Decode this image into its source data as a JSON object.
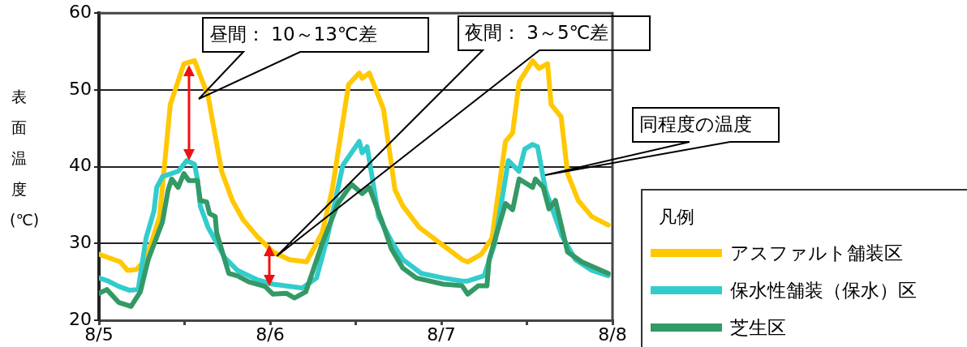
{
  "chart_data": {
    "type": "line",
    "ylabel": "表面温度(℃)",
    "legend_title": "凡例",
    "legend": "bottom right",
    "grid": "y",
    "marker": "none",
    "line_style": "solid",
    "annotations": [
      "昼間： 10～13℃差",
      "夜間： 3～5℃差",
      "同程度の温度"
    ],
    "xlim": [
      "--08-05",
      "--08-08"
    ],
    "xticks": [
      {
        "value": "--08-05",
        "label": "8/5"
      },
      {
        "value": "--08-05T12:00",
        "label": null
      },
      {
        "value": "--08-06",
        "label": "8/6"
      },
      {
        "value": "--08-06T12:00",
        "label": null
      },
      {
        "value": "--08-07",
        "label": "8/7"
      },
      {
        "value": "--08-07T12:00",
        "label": null
      },
      {
        "value": "--08-08",
        "label": "8/8"
      }
    ],
    "ylim": [
      20,
      60
    ],
    "yticks": [
      20,
      30,
      40,
      50,
      60
    ],
    "series": [
      {
        "name": "アスファルト舗装区",
        "color": "#ffc800",
        "x": [
          "--08-05T00:00",
          "--08-05T03:00",
          "--08-05T04:00",
          "--08-05T05:12",
          "--08-05T06:36",
          "--08-05T08:30",
          "--08-05T10:00",
          "--08-05T11:54",
          "--08-05T13:24",
          "--08-05T15:18",
          "--08-05T17:12",
          "--08-05T18:42",
          "--08-05T20:12",
          "--08-05T22:06",
          "--08-06T00:24",
          "--08-06T02:42",
          "--08-06T05:06",
          "--08-06T07:18",
          "--08-06T08:42",
          "--08-06T11:00",
          "--08-06T12:30",
          "--08-06T12:54",
          "--08-06T13:54",
          "--08-06T15:54",
          "--08-06T17:30",
          "--08-06T18:36",
          "--08-06T20:54",
          "--08-06T23:54",
          "--08-07T02:54",
          "--08-07T03:42",
          "--08-07T05:36",
          "--08-07T07:06",
          "--08-07T09:00",
          "--08-07T10:00",
          "--08-07T10:54",
          "--08-07T12:48",
          "--08-07T13:42",
          "--08-07T14:54",
          "--08-07T15:24",
          "--08-07T16:48",
          "--08-07T17:42",
          "--08-07T19:12",
          "--08-07T21:06",
          "--08-07T23:24"
        ],
        "values": [
          28.6,
          27.6,
          26.5,
          26.6,
          27.9,
          33.5,
          48.1,
          53.4,
          53.8,
          49.2,
          39.4,
          35.6,
          33.1,
          31.0,
          28.9,
          27.9,
          27.6,
          31.4,
          37.0,
          50.7,
          52.2,
          51.5,
          52.2,
          47.5,
          37.0,
          34.9,
          32.1,
          30.0,
          27.9,
          27.6,
          28.6,
          30.7,
          43.3,
          44.4,
          51.0,
          53.8,
          52.8,
          53.4,
          48.1,
          46.5,
          39.1,
          35.6,
          33.5,
          32.4
        ]
      },
      {
        "name": "保水性舗装（保水）区",
        "color": "#33cccc",
        "x": [
          "--08-05T00:00",
          "--08-05T01:18",
          "--08-05T02:48",
          "--08-05T04:18",
          "--08-05T05:30",
          "--08-05T06:36",
          "--08-05T07:42",
          "--08-05T08:06",
          "--08-05T08:54",
          "--08-05T11:06",
          "--08-05T12:18",
          "--08-05T13:24",
          "--08-05T13:48",
          "--08-05T14:12",
          "--08-05T15:18",
          "--08-05T17:36",
          "--08-05T19:24",
          "--08-05T22:06",
          "--08-06T00:24",
          "--08-06T04:30",
          "--08-06T06:30",
          "--08-06T08:00",
          "--08-06T10:12",
          "--08-06T12:30",
          "--08-06T12:54",
          "--08-06T13:36",
          "--08-06T15:12",
          "--08-06T17:00",
          "--08-06T18:36",
          "--08-06T21:12",
          "--08-07T00:18",
          "--08-07T02:54",
          "--08-07T03:42",
          "--08-07T06:00",
          "--08-07T07:30",
          "--08-07T09:24",
          "--08-07T10:54",
          "--08-07T11:42",
          "--08-07T12:48",
          "--08-07T13:30",
          "--08-07T14:36",
          "--08-07T16:54",
          "--08-07T18:48",
          "--08-07T21:06",
          "--08-07T23:24"
        ],
        "values": [
          25.5,
          25.1,
          24.4,
          23.9,
          24.0,
          30.7,
          34.2,
          37.3,
          38.7,
          39.4,
          40.8,
          40.3,
          38.4,
          34.9,
          32.1,
          28.2,
          26.5,
          25.3,
          24.7,
          24.2,
          25.5,
          30.7,
          40.2,
          43.3,
          41.8,
          42.6,
          33.5,
          30.3,
          27.9,
          26.1,
          25.5,
          25.1,
          25.1,
          25.8,
          30.0,
          40.8,
          39.4,
          42.3,
          42.9,
          42.6,
          37.0,
          31.0,
          27.9,
          26.5,
          25.8
        ]
      },
      {
        "name": "芝生区",
        "color": "#339966",
        "x": [
          "--08-05T00:00",
          "--08-05T01:06",
          "--08-05T02:48",
          "--08-05T04:30",
          "--08-05T05:48",
          "--08-05T06:54",
          "--08-05T08:54",
          "--08-05T09:42",
          "--08-05T10:12",
          "--08-05T11:06",
          "--08-05T11:54",
          "--08-05T12:36",
          "--08-05T13:48",
          "--08-05T14:12",
          "--08-05T15:06",
          "--08-05T15:30",
          "--08-05T16:18",
          "--08-05T16:30",
          "--08-05T18:12",
          "--08-05T19:24",
          "--08-05T21:00",
          "--08-05T23:18",
          "--08-06T00:24",
          "--08-06T02:18",
          "--08-06T03:24",
          "--08-06T05:00",
          "--08-06T07:18",
          "--08-06T09:30",
          "--08-06T11:24",
          "--08-06T12:54",
          "--08-06T13:54",
          "--08-06T15:36",
          "--08-06T17:00",
          "--08-06T18:36",
          "--08-06T20:30",
          "--08-07T00:18",
          "--08-07T02:54",
          "--08-07T03:42",
          "--08-07T05:12",
          "--08-07T06:24",
          "--08-07T06:42",
          "--08-07T09:00",
          "--08-07T10:00",
          "--08-07T10:54",
          "--08-07T12:48",
          "--08-07T13:12",
          "--08-07T14:18",
          "--08-07T15:06",
          "--08-07T16:00",
          "--08-07T17:42",
          "--08-07T19:42",
          "--08-07T23:24"
        ],
        "values": [
          23.5,
          24.0,
          22.3,
          21.8,
          23.7,
          27.9,
          32.8,
          37.0,
          38.4,
          37.3,
          39.1,
          38.2,
          38.2,
          35.6,
          35.4,
          33.9,
          33.5,
          31.4,
          26.1,
          25.8,
          25.0,
          24.4,
          23.4,
          23.5,
          22.9,
          23.7,
          30.0,
          35.2,
          37.7,
          36.5,
          37.3,
          33.1,
          29.3,
          26.8,
          25.5,
          24.7,
          24.5,
          23.4,
          24.5,
          24.5,
          27.9,
          35.2,
          34.4,
          38.4,
          37.3,
          38.4,
          37.3,
          34.5,
          35.6,
          28.9,
          27.6,
          26.1
        ]
      }
    ]
  }
}
